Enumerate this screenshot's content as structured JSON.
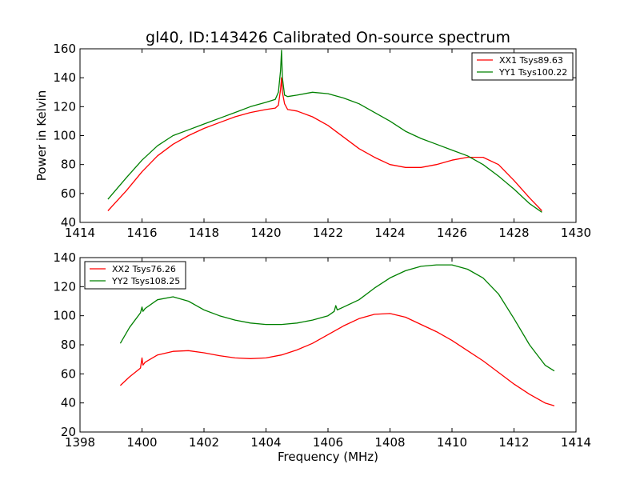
{
  "chart_title": "gl40, ID:143426 Calibrated On-source spectrum",
  "chart_data": [
    {
      "type": "line",
      "xlabel": "",
      "ylabel": "Power in Kelvin",
      "xlim": [
        1414,
        1430
      ],
      "ylim": [
        40,
        160
      ],
      "xticks": [
        1414,
        1416,
        1418,
        1420,
        1422,
        1424,
        1426,
        1428,
        1430
      ],
      "yticks": [
        40,
        60,
        80,
        100,
        120,
        140,
        160
      ],
      "legend": "top-right",
      "series": [
        {
          "name": "XX1 Tsys89.63",
          "color": "#ff0000",
          "x": [
            1414.9,
            1415.5,
            1416,
            1416.5,
            1417,
            1417.5,
            1418,
            1418.5,
            1419,
            1419.5,
            1420,
            1420.3,
            1420.4,
            1420.47,
            1420.5,
            1420.53,
            1420.6,
            1420.7,
            1421,
            1421.5,
            1422,
            1422.5,
            1423,
            1423.5,
            1424,
            1424.5,
            1425,
            1425.5,
            1426,
            1426.5,
            1427,
            1427.5,
            1428,
            1428.5,
            1428.9
          ],
          "y": [
            48,
            62,
            75,
            86,
            94,
            100,
            105,
            109,
            113,
            116,
            118,
            119,
            121,
            132,
            140,
            130,
            122,
            118,
            117,
            113,
            107,
            99,
            91,
            85,
            80,
            78,
            78,
            80,
            83,
            85,
            85,
            80,
            69,
            57,
            48
          ]
        },
        {
          "name": "YY1 Tsys100.22",
          "color": "#008000",
          "x": [
            1414.9,
            1415.5,
            1416,
            1416.5,
            1417,
            1417.5,
            1418,
            1418.5,
            1419,
            1419.5,
            1420,
            1420.3,
            1420.4,
            1420.47,
            1420.5,
            1420.53,
            1420.6,
            1420.7,
            1421,
            1421.5,
            1422,
            1422.5,
            1423,
            1423.5,
            1424,
            1424.5,
            1425,
            1425.5,
            1426,
            1426.5,
            1427,
            1427.5,
            1428,
            1428.5,
            1428.9
          ],
          "y": [
            56,
            71,
            83,
            93,
            100,
            104,
            108,
            112,
            116,
            120,
            123,
            125,
            130,
            145,
            159,
            140,
            128,
            127,
            128,
            130,
            129,
            126,
            122,
            116,
            110,
            103,
            98,
            94,
            90,
            86,
            80,
            72,
            63,
            53,
            47
          ]
        }
      ]
    },
    {
      "type": "line",
      "xlabel": "Frequency (MHz)",
      "ylabel": "",
      "xlim": [
        1398,
        1414
      ],
      "ylim": [
        20,
        140
      ],
      "xticks": [
        1398,
        1400,
        1402,
        1404,
        1406,
        1408,
        1410,
        1412,
        1414
      ],
      "yticks": [
        20,
        40,
        60,
        80,
        100,
        120,
        140
      ],
      "legend": "top-left",
      "series": [
        {
          "name": "XX2 Tsys76.26",
          "color": "#ff0000",
          "x": [
            1399.3,
            1399.6,
            1399.95,
            1400,
            1400.03,
            1400.1,
            1400.5,
            1401,
            1401.5,
            1402,
            1402.5,
            1403,
            1403.5,
            1404,
            1404.5,
            1405,
            1405.5,
            1406,
            1406.5,
            1407,
            1407.5,
            1408,
            1408.5,
            1409,
            1409.5,
            1410,
            1410.5,
            1411,
            1411.5,
            1412,
            1412.5,
            1413,
            1413.3
          ],
          "y": [
            52,
            58,
            64,
            71,
            66,
            68,
            73,
            75.5,
            76,
            74.5,
            72.5,
            71,
            70.5,
            71,
            73,
            76.5,
            81,
            87,
            93,
            98,
            101,
            101.5,
            99,
            94,
            89,
            83,
            76,
            69,
            61,
            53,
            46,
            40,
            38
          ]
        },
        {
          "name": "YY2 Tsys108.25",
          "color": "#008000",
          "x": [
            1399.3,
            1399.6,
            1399.95,
            1400,
            1400.03,
            1400.1,
            1400.5,
            1401,
            1401.5,
            1402,
            1402.5,
            1403,
            1403.5,
            1404,
            1404.5,
            1405,
            1405.5,
            1406,
            1406.2,
            1406.25,
            1406.3,
            1406.5,
            1407,
            1407.5,
            1408,
            1408.5,
            1409,
            1409.5,
            1410,
            1410.5,
            1411,
            1411.5,
            1412,
            1412.5,
            1413,
            1413.3
          ],
          "y": [
            81,
            92,
            102,
            106,
            103,
            105,
            111,
            113,
            110,
            104,
            100,
            97,
            95,
            94,
            94,
            95,
            97,
            100,
            103,
            107,
            104,
            106,
            111,
            119,
            126,
            131,
            134,
            135,
            135,
            132,
            126,
            115,
            98,
            80,
            66,
            62
          ]
        }
      ]
    }
  ]
}
